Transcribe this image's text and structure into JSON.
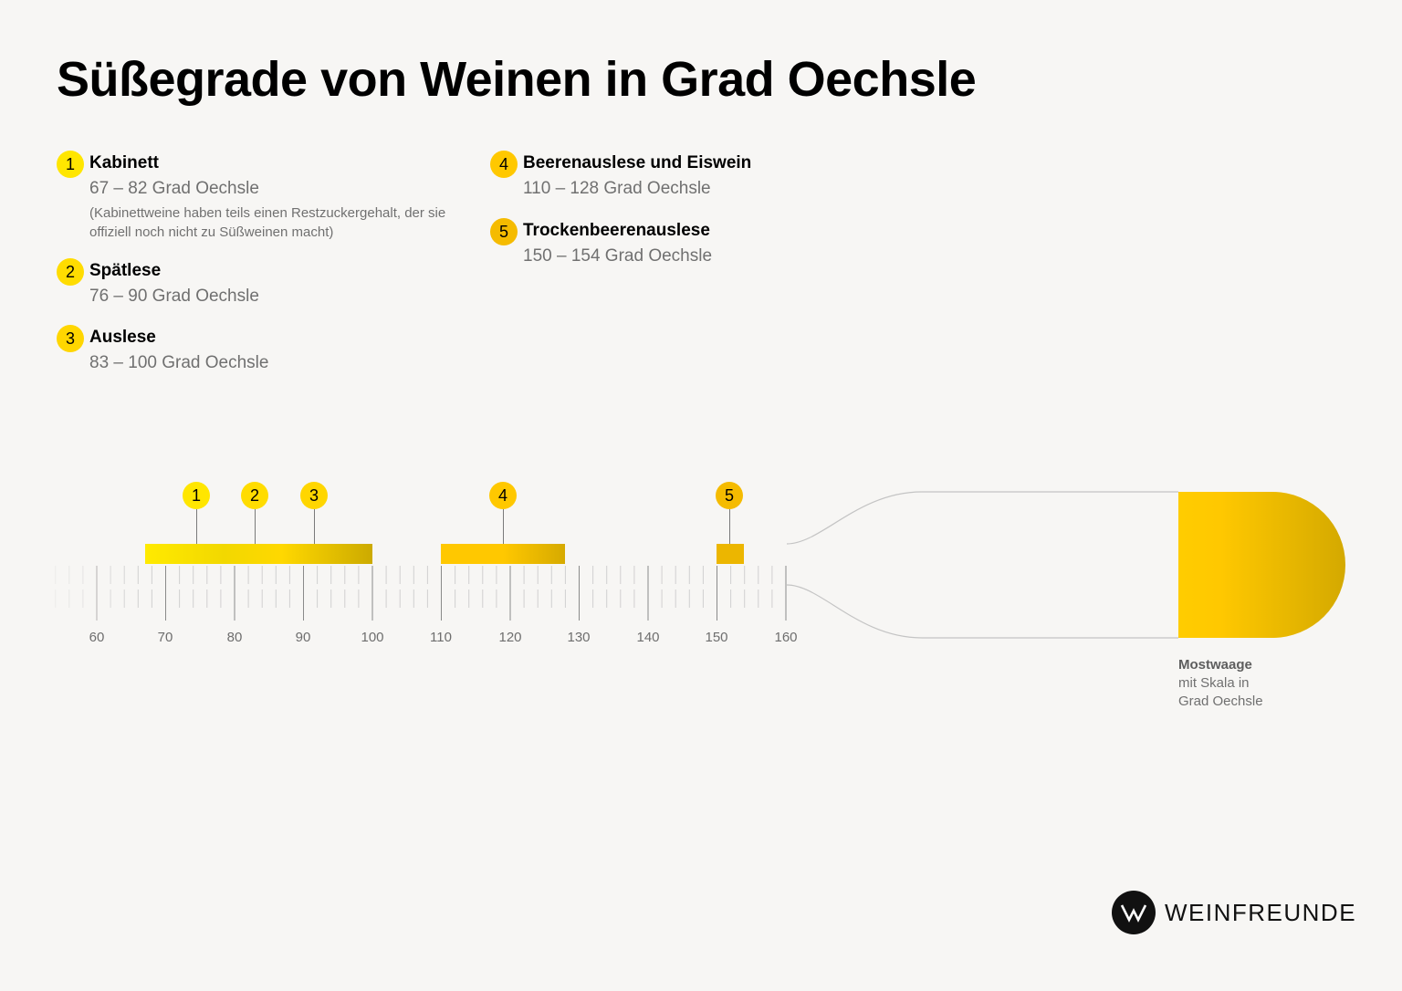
{
  "title": "Süßegrade von Weinen in Grad Oechsle",
  "legend": [
    {
      "num": "1",
      "name": "Kabinett",
      "range": "67 – 82 Grad Oechsle",
      "note": "(Kabinettweine haben teils einen Restzuckergehalt, der sie offiziell noch nicht zu Süßweinen macht)",
      "color": "#ffe600"
    },
    {
      "num": "2",
      "name": "Spätlese",
      "range": "76 – 90 Grad Oechsle",
      "color": "#ffdc00"
    },
    {
      "num": "3",
      "name": "Auslese",
      "range": "83 – 100 Grad Oechsle",
      "color": "#ffd600"
    },
    {
      "num": "4",
      "name": "Beerenauslese und Eiswein",
      "range": "110 – 128 Grad Oechsle",
      "color": "#ffc800"
    },
    {
      "num": "5",
      "name": "Trockenbeerenauslese",
      "range": "150 – 154 Grad Oechsle",
      "color": "#f5bb00"
    }
  ],
  "caption": {
    "bold": "Mostwaage",
    "line2": "mit Skala in",
    "line3": "Grad Oechsle"
  },
  "logo": {
    "text": "WEINFREUNDE"
  },
  "chart_data": {
    "type": "bar",
    "orientation": "horizontal-range",
    "title": "Süßegrade von Weinen in Grad Oechsle",
    "xlabel": "Grad Oechsle",
    "xlim": [
      55,
      160
    ],
    "xticks": [
      60,
      70,
      80,
      90,
      100,
      110,
      120,
      130,
      140,
      150,
      160
    ],
    "minor_tick_step": 2,
    "grid": false,
    "legend_position": "top-left",
    "categories": [
      "Kabinett",
      "Spätlese",
      "Auslese",
      "Beerenauslese und Eiswein",
      "Trockenbeerenauslese"
    ],
    "series": [
      {
        "name": "min",
        "values": [
          67,
          76,
          83,
          110,
          150
        ]
      },
      {
        "name": "max",
        "values": [
          82,
          90,
          100,
          128,
          154
        ]
      }
    ],
    "marker_positions": [
      74.5,
      83,
      91.5,
      119,
      152
    ],
    "annotation": "Mostwaage mit Skala in Grad Oechsle"
  }
}
